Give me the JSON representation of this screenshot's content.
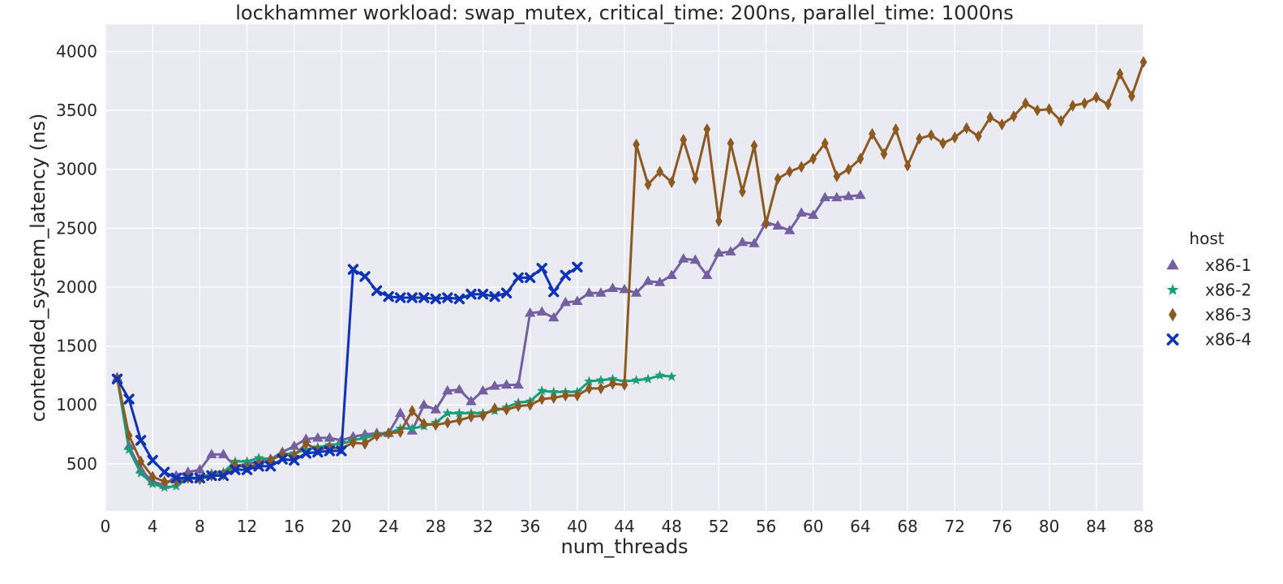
{
  "chart_data": {
    "type": "line",
    "title": "lockhammer workload: swap_mutex, critical_time: 200ns, parallel_time: 1000ns",
    "xlabel": "num_threads",
    "ylabel": "contended_system_latency (ns)",
    "xlim": [
      0,
      88
    ],
    "ylim": [
      100,
      4230
    ],
    "xticks": [
      0,
      4,
      8,
      12,
      16,
      20,
      24,
      28,
      32,
      36,
      40,
      44,
      48,
      52,
      56,
      60,
      64,
      68,
      72,
      76,
      80,
      84,
      88
    ],
    "yticks": [
      500,
      1000,
      1500,
      2000,
      2500,
      3000,
      3500,
      4000
    ],
    "grid": true,
    "background": "#eaeaf2",
    "legend": {
      "title": "host",
      "placement": "right"
    },
    "series": [
      {
        "name": "x86-1",
        "color": "#7460a0",
        "marker": "triangle",
        "x": [
          1,
          2,
          3,
          4,
          5,
          6,
          7,
          8,
          9,
          10,
          11,
          12,
          13,
          14,
          15,
          16,
          17,
          18,
          19,
          20,
          21,
          22,
          23,
          24,
          25,
          26,
          27,
          28,
          29,
          30,
          31,
          32,
          33,
          34,
          35,
          36,
          37,
          38,
          39,
          40,
          41,
          42,
          43,
          44,
          45,
          46,
          47,
          48,
          49,
          50,
          51,
          52,
          53,
          54,
          55,
          56,
          57,
          58,
          59,
          60,
          61,
          62,
          63,
          64
        ],
        "y": [
          1230,
          650,
          450,
          350,
          320,
          400,
          430,
          450,
          580,
          580,
          480,
          500,
          520,
          540,
          600,
          650,
          710,
          720,
          720,
          700,
          730,
          750,
          760,
          760,
          930,
          780,
          1000,
          960,
          1120,
          1130,
          1030,
          1120,
          1160,
          1170,
          1170,
          1780,
          1790,
          1740,
          1870,
          1880,
          1950,
          1950,
          1990,
          1980,
          1950,
          2050,
          2040,
          2100,
          2240,
          2230,
          2100,
          2290,
          2300,
          2380,
          2370,
          2550,
          2520,
          2480,
          2630,
          2610,
          2760,
          2760,
          2770,
          2780
        ]
      },
      {
        "name": "x86-2",
        "color": "#1a9e77",
        "marker": "star",
        "x": [
          1,
          2,
          3,
          4,
          5,
          6,
          7,
          8,
          9,
          10,
          11,
          12,
          13,
          14,
          15,
          16,
          17,
          18,
          19,
          20,
          21,
          22,
          23,
          24,
          25,
          26,
          27,
          28,
          29,
          30,
          31,
          32,
          33,
          34,
          35,
          36,
          37,
          38,
          39,
          40,
          41,
          42,
          43,
          44,
          45,
          46,
          47,
          48
        ],
        "y": [
          1230,
          620,
          420,
          330,
          300,
          310,
          380,
          380,
          420,
          430,
          520,
          520,
          550,
          540,
          580,
          590,
          620,
          640,
          660,
          670,
          700,
          720,
          750,
          760,
          800,
          800,
          820,
          850,
          930,
          930,
          930,
          930,
          950,
          980,
          1020,
          1030,
          1120,
          1110,
          1110,
          1110,
          1200,
          1210,
          1220,
          1200,
          1210,
          1220,
          1250,
          1240
        ]
      },
      {
        "name": "x86-3",
        "color": "#8c5a21",
        "marker": "diamond",
        "x": [
          1,
          2,
          3,
          4,
          5,
          6,
          7,
          8,
          9,
          10,
          11,
          12,
          13,
          14,
          15,
          16,
          17,
          18,
          19,
          20,
          21,
          22,
          23,
          24,
          25,
          26,
          27,
          28,
          29,
          30,
          31,
          32,
          33,
          34,
          35,
          36,
          37,
          38,
          39,
          40,
          41,
          42,
          43,
          44,
          45,
          46,
          47,
          48,
          49,
          50,
          51,
          52,
          53,
          54,
          55,
          56,
          57,
          58,
          59,
          60,
          61,
          62,
          63,
          64,
          65,
          66,
          67,
          68,
          69,
          70,
          71,
          72,
          73,
          74,
          75,
          76,
          77,
          78,
          79,
          80,
          81,
          82,
          83,
          84,
          85,
          86,
          87,
          88
        ],
        "y": [
          1230,
          740,
          520,
          390,
          350,
          350,
          380,
          370,
          400,
          410,
          490,
          470,
          500,
          530,
          580,
          570,
          670,
          620,
          640,
          630,
          680,
          670,
          740,
          760,
          770,
          950,
          840,
          830,
          850,
          870,
          900,
          910,
          970,
          960,
          990,
          1000,
          1050,
          1060,
          1080,
          1080,
          1140,
          1140,
          1180,
          1170,
          3210,
          2870,
          2980,
          2890,
          3250,
          2920,
          3340,
          2560,
          3220,
          2810,
          3200,
          2540,
          2920,
          2980,
          3020,
          3090,
          3220,
          2940,
          3000,
          3090,
          3300,
          3130,
          3340,
          3030,
          3260,
          3290,
          3220,
          3270,
          3350,
          3280,
          3440,
          3380,
          3450,
          3560,
          3500,
          3510,
          3410,
          3540,
          3560,
          3610,
          3550,
          3810,
          3620,
          3910
        ]
      },
      {
        "name": "x86-4",
        "color": "#0e33b5",
        "marker": "x",
        "x": [
          1,
          2,
          3,
          4,
          5,
          6,
          7,
          8,
          9,
          10,
          11,
          12,
          13,
          14,
          15,
          16,
          17,
          18,
          19,
          20,
          21,
          22,
          23,
          24,
          25,
          26,
          27,
          28,
          29,
          30,
          31,
          32,
          33,
          34,
          35,
          36,
          37,
          38,
          39,
          40
        ],
        "y": [
          1220,
          1050,
          700,
          530,
          430,
          380,
          380,
          380,
          400,
          400,
          450,
          450,
          480,
          480,
          540,
          530,
          590,
          600,
          610,
          610,
          2150,
          2090,
          1970,
          1920,
          1910,
          1910,
          1910,
          1900,
          1910,
          1900,
          1940,
          1940,
          1920,
          1950,
          2080,
          2080,
          2160,
          1960,
          2100,
          2170
        ]
      }
    ]
  }
}
